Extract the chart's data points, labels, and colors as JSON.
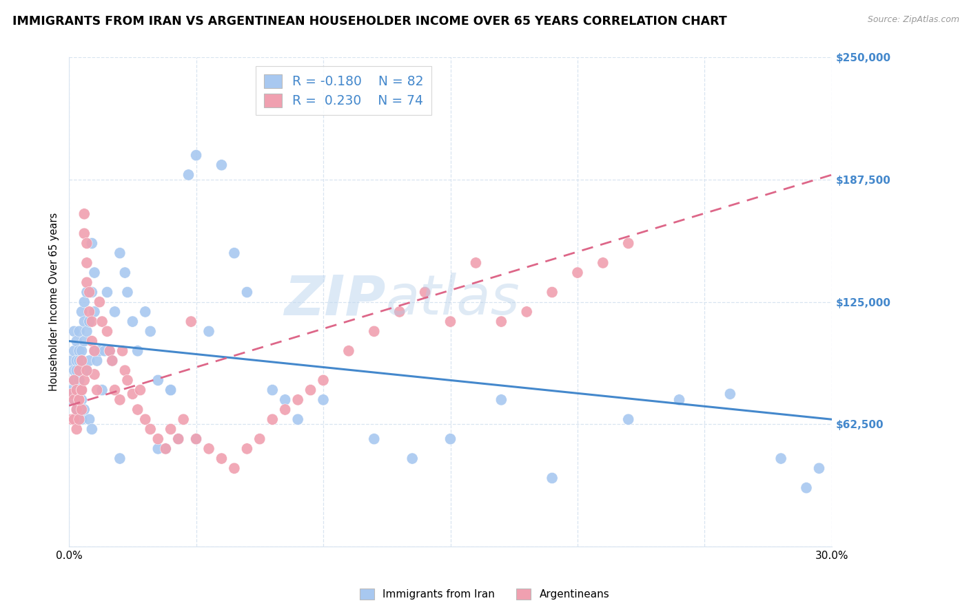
{
  "title": "IMMIGRANTS FROM IRAN VS ARGENTINEAN HOUSEHOLDER INCOME OVER 65 YEARS CORRELATION CHART",
  "source": "Source: ZipAtlas.com",
  "ylabel": "Householder Income Over 65 years",
  "xlim": [
    0.0,
    0.3
  ],
  "ylim": [
    0,
    250000
  ],
  "ytick_positions": [
    0,
    62500,
    125000,
    187500,
    250000
  ],
  "ytick_labels": [
    "",
    "$62,500",
    "$125,000",
    "$187,500",
    "$250,000"
  ],
  "xtick_positions": [
    0.0,
    0.05,
    0.1,
    0.15,
    0.2,
    0.25,
    0.3
  ],
  "xtick_labels": [
    "0.0%",
    "",
    "",
    "",
    "",
    "",
    "30.0%"
  ],
  "iran_color": "#a8c8f0",
  "argentina_color": "#f0a0b0",
  "iran_R": -0.18,
  "iran_N": 82,
  "argentina_R": 0.23,
  "argentina_N": 74,
  "iran_line_color": "#4488cc",
  "argentina_line_color": "#dd6688",
  "background_color": "#ffffff",
  "grid_color": "#d8e4f0",
  "iran_line_y0": 105000,
  "iran_line_y1": 65000,
  "arg_line_y0": 72000,
  "arg_line_y1": 190000,
  "iran_x": [
    0.001,
    0.001,
    0.001,
    0.002,
    0.002,
    0.002,
    0.002,
    0.003,
    0.003,
    0.003,
    0.003,
    0.003,
    0.004,
    0.004,
    0.004,
    0.004,
    0.005,
    0.005,
    0.005,
    0.005,
    0.005,
    0.006,
    0.006,
    0.006,
    0.007,
    0.007,
    0.007,
    0.008,
    0.008,
    0.009,
    0.009,
    0.01,
    0.01,
    0.01,
    0.011,
    0.012,
    0.013,
    0.014,
    0.015,
    0.016,
    0.017,
    0.018,
    0.02,
    0.022,
    0.023,
    0.025,
    0.027,
    0.03,
    0.032,
    0.035,
    0.038,
    0.04,
    0.043,
    0.047,
    0.05,
    0.055,
    0.06,
    0.065,
    0.07,
    0.08,
    0.085,
    0.09,
    0.1,
    0.12,
    0.135,
    0.15,
    0.17,
    0.19,
    0.22,
    0.24,
    0.26,
    0.28,
    0.29,
    0.295,
    0.005,
    0.006,
    0.008,
    0.009,
    0.02,
    0.035,
    0.04,
    0.05
  ],
  "iran_y": [
    80000,
    95000,
    75000,
    90000,
    100000,
    85000,
    110000,
    105000,
    95000,
    90000,
    80000,
    70000,
    100000,
    110000,
    95000,
    85000,
    120000,
    100000,
    95000,
    80000,
    75000,
    125000,
    115000,
    105000,
    130000,
    110000,
    90000,
    115000,
    95000,
    155000,
    130000,
    140000,
    120000,
    100000,
    95000,
    100000,
    80000,
    100000,
    130000,
    100000,
    95000,
    120000,
    150000,
    140000,
    130000,
    115000,
    100000,
    120000,
    110000,
    85000,
    50000,
    80000,
    55000,
    190000,
    200000,
    110000,
    195000,
    150000,
    130000,
    80000,
    75000,
    65000,
    75000,
    55000,
    45000,
    55000,
    75000,
    35000,
    65000,
    75000,
    78000,
    45000,
    30000,
    40000,
    65000,
    70000,
    65000,
    60000,
    45000,
    50000,
    80000,
    55000
  ],
  "arg_x": [
    0.001,
    0.001,
    0.002,
    0.002,
    0.002,
    0.003,
    0.003,
    0.003,
    0.004,
    0.004,
    0.004,
    0.005,
    0.005,
    0.005,
    0.006,
    0.006,
    0.007,
    0.007,
    0.007,
    0.008,
    0.008,
    0.009,
    0.009,
    0.01,
    0.01,
    0.011,
    0.012,
    0.013,
    0.015,
    0.016,
    0.017,
    0.018,
    0.02,
    0.021,
    0.022,
    0.023,
    0.025,
    0.027,
    0.028,
    0.03,
    0.032,
    0.035,
    0.038,
    0.04,
    0.043,
    0.045,
    0.048,
    0.05,
    0.055,
    0.06,
    0.065,
    0.07,
    0.075,
    0.08,
    0.085,
    0.09,
    0.095,
    0.1,
    0.11,
    0.12,
    0.13,
    0.14,
    0.15,
    0.16,
    0.17,
    0.18,
    0.19,
    0.2,
    0.21,
    0.22,
    0.004,
    0.005,
    0.006,
    0.007
  ],
  "arg_y": [
    78000,
    65000,
    85000,
    75000,
    65000,
    80000,
    70000,
    60000,
    90000,
    75000,
    65000,
    95000,
    80000,
    70000,
    170000,
    160000,
    155000,
    145000,
    135000,
    130000,
    120000,
    115000,
    105000,
    100000,
    88000,
    80000,
    125000,
    115000,
    110000,
    100000,
    95000,
    80000,
    75000,
    100000,
    90000,
    85000,
    78000,
    70000,
    80000,
    65000,
    60000,
    55000,
    50000,
    60000,
    55000,
    65000,
    115000,
    55000,
    50000,
    45000,
    40000,
    50000,
    55000,
    65000,
    70000,
    75000,
    80000,
    85000,
    100000,
    110000,
    120000,
    130000,
    115000,
    145000,
    115000,
    120000,
    130000,
    140000,
    145000,
    155000,
    75000,
    80000,
    85000,
    90000
  ]
}
